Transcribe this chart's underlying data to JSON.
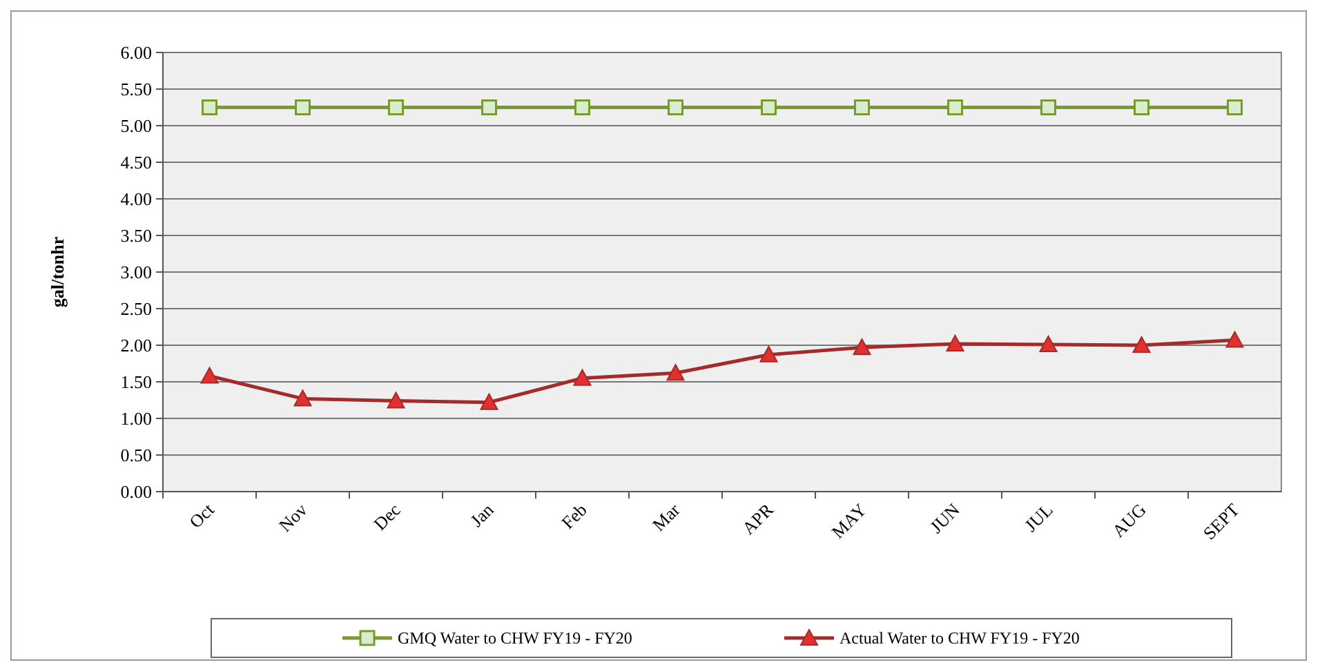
{
  "chart_data": {
    "type": "line",
    "ylabel": "gal/tonhr",
    "categories": [
      "Oct",
      "Nov",
      "Dec",
      "Jan",
      "Feb",
      "Mar",
      "APR",
      "MAY",
      "JUN",
      "JUL",
      "AUG",
      "SEPT"
    ],
    "series": [
      {
        "name": "GMQ Water to CHW FY19 - FY20",
        "color": "#7a9a2c",
        "marker": "square",
        "values": [
          5.25,
          5.25,
          5.25,
          5.25,
          5.25,
          5.25,
          5.25,
          5.25,
          5.25,
          5.25,
          5.25,
          5.25
        ]
      },
      {
        "name": "Actual Water to CHW FY19 - FY20",
        "color": "#a52a2a",
        "marker": "triangle",
        "values": [
          1.58,
          1.27,
          1.24,
          1.22,
          1.55,
          1.62,
          1.87,
          1.97,
          2.02,
          2.01,
          2.0,
          2.07
        ]
      }
    ],
    "ylim": [
      0,
      6
    ],
    "yticks": [
      {
        "value": 0,
        "label": "0.00"
      },
      {
        "value": 0.5,
        "label": "0.50"
      },
      {
        "value": 1,
        "label": "1.00"
      },
      {
        "value": 1.5,
        "label": "1.50"
      },
      {
        "value": 2,
        "label": "2.00"
      },
      {
        "value": 2.5,
        "label": "2.50"
      },
      {
        "value": 3,
        "label": "3.00"
      },
      {
        "value": 3.5,
        "label": "3.50"
      },
      {
        "value": 4,
        "label": "4.00"
      },
      {
        "value": 4.5,
        "label": "4.50"
      },
      {
        "value": 5,
        "label": "5.00"
      },
      {
        "value": 5.5,
        "label": "5.50"
      },
      {
        "value": 6,
        "label": "6.00"
      }
    ],
    "grid": "y",
    "legend": "bottom"
  }
}
